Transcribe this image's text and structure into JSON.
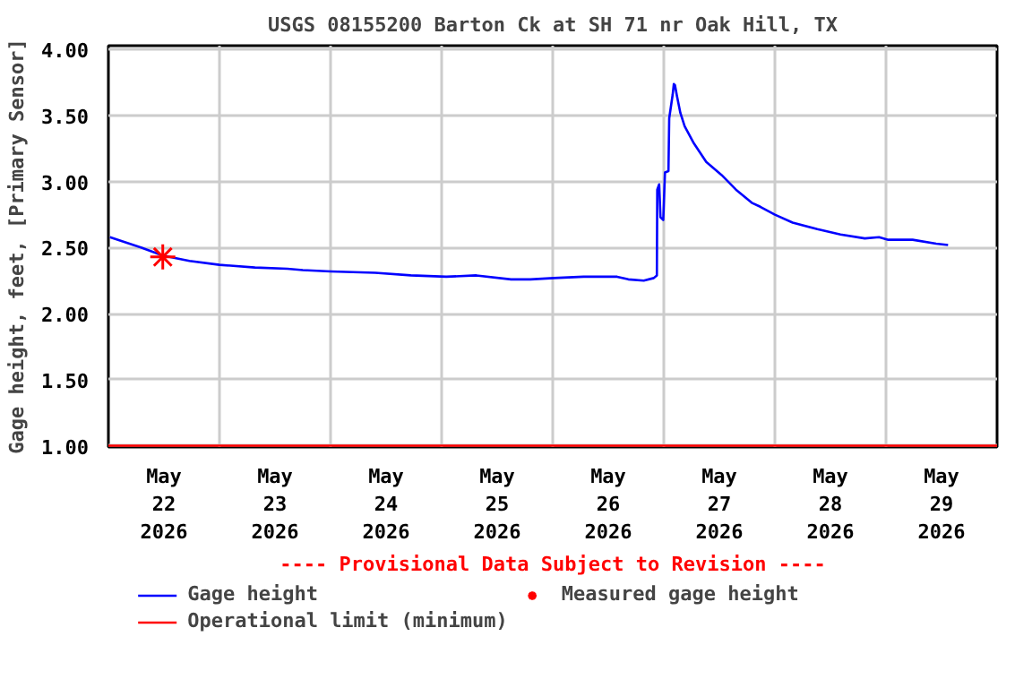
{
  "chart_data": {
    "type": "line",
    "title": "USGS 08155200 Barton Ck at SH 71 nr Oak Hill, TX",
    "ylabel": "Gage height, feet, [Primary Sensor]",
    "annotations": [
      "---- Provisional Data Subject to Revision ----"
    ],
    "xlim": [
      "2026-05-22T00:00",
      "2026-05-30T00:00"
    ],
    "xticks": [
      {
        "value": "2026-05-22T12:00",
        "label": "May\n22\n2026"
      },
      {
        "value": "2026-05-23T00:00",
        "label": null
      },
      {
        "value": "2026-05-23T12:00",
        "label": "May\n23\n2026"
      },
      {
        "value": "2026-05-24T00:00",
        "label": null
      },
      {
        "value": "2026-05-24T12:00",
        "label": "May\n24\n2026"
      },
      {
        "value": "2026-05-25T00:00",
        "label": null
      },
      {
        "value": "2026-05-25T12:00",
        "label": "May\n25\n2026"
      },
      {
        "value": "2026-05-26T00:00",
        "label": null
      },
      {
        "value": "2026-05-26T12:00",
        "label": "May\n26\n2026"
      },
      {
        "value": "2026-05-27T00:00",
        "label": null
      },
      {
        "value": "2026-05-27T12:00",
        "label": "May\n27\n2026"
      },
      {
        "value": "2026-05-28T00:00",
        "label": null
      },
      {
        "value": "2026-05-28T12:00",
        "label": "May\n28\n2026"
      },
      {
        "value": "2026-05-29T00:00",
        "label": null
      },
      {
        "value": "2026-05-29T12:00",
        "label": "May\n29\n2026"
      }
    ],
    "ylim": [
      0.99,
      4.03
    ],
    "yticks": [
      {
        "value": 1,
        "label": "1.00"
      },
      {
        "value": 1.5,
        "label": "1.50"
      },
      {
        "value": 2,
        "label": "2.00"
      },
      {
        "value": 2.5,
        "label": "2.50"
      },
      {
        "value": 3,
        "label": "3.00"
      },
      {
        "value": 3.5,
        "label": "3.50"
      },
      {
        "value": 4,
        "label": "4.00"
      }
    ],
    "grid": true,
    "legend": "bottom",
    "series": [
      {
        "name": "Gage height",
        "color": "#0000ff",
        "x": [
          "2026-05-22T00:20",
          "2026-05-22T07:10",
          "2026-05-22T11:45",
          "2026-05-22T17:30",
          "2026-05-23T00:00",
          "2026-05-23T07:40",
          "2026-05-23T14:40",
          "2026-05-23T18:00",
          "2026-05-24T00:00",
          "2026-05-24T09:40",
          "2026-05-24T17:20",
          "2026-05-25T01:00",
          "2026-05-25T07:30",
          "2026-05-25T15:00",
          "2026-05-25T19:10",
          "2026-05-26T00:15",
          "2026-05-26T06:40",
          "2026-05-26T13:55",
          "2026-05-26T16:20",
          "2026-05-26T19:40",
          "2026-05-26T21:50",
          "2026-05-26T22:30",
          "2026-05-26T22:35",
          "2026-05-26T23:00",
          "2026-05-26T23:17",
          "2026-05-26T23:53",
          "2026-05-27T00:15",
          "2026-05-27T01:00",
          "2026-05-27T01:10",
          "2026-05-27T01:55",
          "2026-05-27T02:10",
          "2026-05-27T02:25",
          "2026-05-27T02:50",
          "2026-05-27T03:35",
          "2026-05-27T04:30",
          "2026-05-27T06:30",
          "2026-05-27T09:10",
          "2026-05-27T12:30",
          "2026-05-27T15:35",
          "2026-05-27T19:00",
          "2026-05-27T20:50",
          "2026-05-28T00:00",
          "2026-05-28T03:50",
          "2026-05-28T09:10",
          "2026-05-28T14:10",
          "2026-05-28T19:25",
          "2026-05-28T22:30",
          "2026-05-29T00:30",
          "2026-05-29T05:45",
          "2026-05-29T10:50",
          "2026-05-29T13:25"
        ],
        "values": [
          2.58,
          2.5,
          2.44,
          2.4,
          2.37,
          2.35,
          2.34,
          2.33,
          2.32,
          2.31,
          2.29,
          2.28,
          2.29,
          2.26,
          2.26,
          2.27,
          2.28,
          2.28,
          2.26,
          2.25,
          2.27,
          2.29,
          2.94,
          2.98,
          2.73,
          2.71,
          3.07,
          3.08,
          3.48,
          3.66,
          3.74,
          3.73,
          3.65,
          3.52,
          3.42,
          3.29,
          3.15,
          3.05,
          2.94,
          2.84,
          2.81,
          2.75,
          2.69,
          2.64,
          2.6,
          2.57,
          2.58,
          2.56,
          2.56,
          2.53,
          2.52
        ]
      },
      {
        "name": "Operational limit (minimum)",
        "color": "#ff0000",
        "x": [
          "2026-05-22T00:00",
          "2026-05-30T00:00"
        ],
        "values": [
          1.0,
          1.0
        ]
      },
      {
        "name": "Measured gage height",
        "type": "scatter",
        "marker": "cross",
        "color": "#ff0000",
        "x": [
          "2026-05-22T11:45"
        ],
        "values": [
          2.43
        ]
      }
    ]
  }
}
